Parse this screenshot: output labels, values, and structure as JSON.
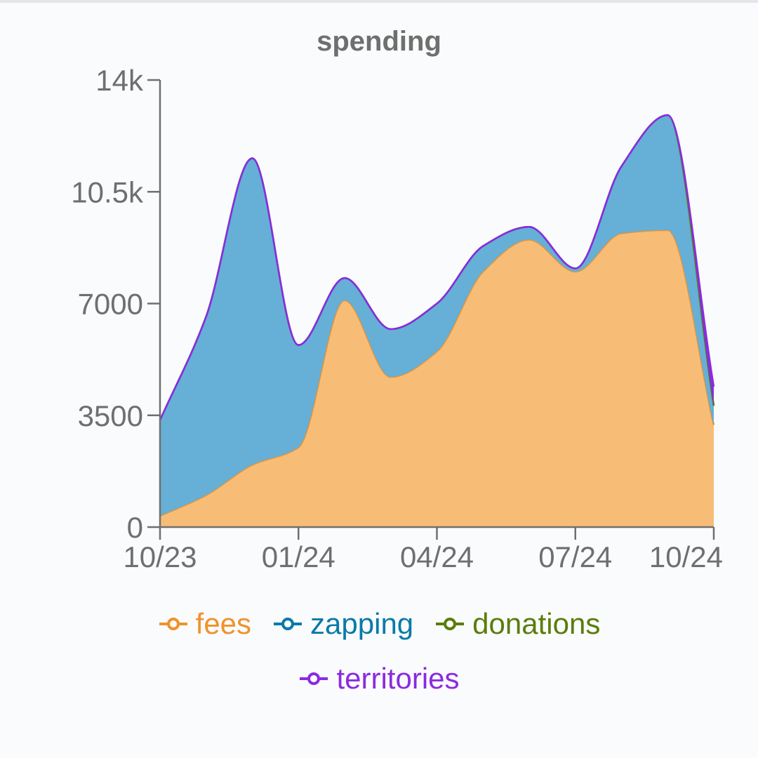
{
  "chart_data": {
    "type": "area",
    "stacked": true,
    "title": "spending",
    "xlabel": "",
    "ylabel": "",
    "x": [
      "10/23",
      "11/23",
      "12/23",
      "01/24",
      "02/24",
      "03/24",
      "04/24",
      "05/24",
      "06/24",
      "07/24",
      "08/24",
      "09/24",
      "10/24"
    ],
    "x_tick_labels": [
      "10/23",
      "01/24",
      "04/24",
      "07/24",
      "10/24"
    ],
    "x_tick_indices": [
      0,
      3,
      6,
      9,
      12
    ],
    "y_ticks": [
      0,
      3500,
      7000,
      10500,
      14000
    ],
    "y_tick_labels": [
      "0",
      "3500",
      "7000",
      "10.5k",
      "14k"
    ],
    "ylim": [
      0,
      14000
    ],
    "series": [
      {
        "name": "fees",
        "color": "#f0922b",
        "fill": "#f7bd77",
        "values": [
          350,
          1000,
          1950,
          2500,
          7100,
          4700,
          5500,
          8000,
          9000,
          8000,
          9200,
          9300,
          3200
        ]
      },
      {
        "name": "zapping",
        "color": "#0a7aa8",
        "fill": "#66afd6",
        "values": [
          3000,
          5600,
          9600,
          3200,
          700,
          1500,
          1500,
          800,
          400,
          100,
          2100,
          3600,
          600
        ]
      },
      {
        "name": "donations",
        "color": "#5a7d0a",
        "fill": "#5a7d0a",
        "values": [
          0,
          0,
          0,
          0,
          0,
          0,
          0,
          0,
          0,
          0,
          0,
          0,
          0
        ]
      },
      {
        "name": "territories",
        "color": "#8a2be2",
        "fill": "#8a2be2",
        "values": [
          0,
          0,
          0,
          0,
          0,
          0,
          0,
          0,
          0,
          0,
          0,
          0,
          600
        ]
      }
    ],
    "legend_position": "bottom",
    "grid": false
  }
}
